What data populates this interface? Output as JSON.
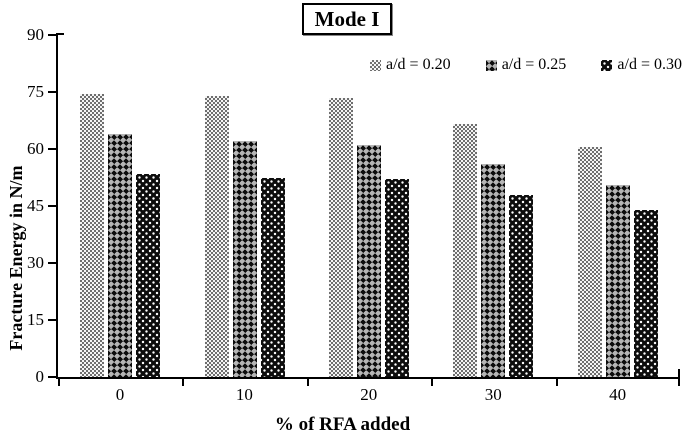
{
  "figure": {
    "title": "Mode I"
  },
  "chart_data": {
    "type": "bar",
    "title": "Mode I",
    "categories": [
      "0",
      "10",
      "20",
      "30",
      "40"
    ],
    "series": [
      {
        "name": "a/d = 0.20",
        "pattern": "light-gray-checker",
        "values": [
          74.5,
          74.0,
          73.5,
          66.5,
          60.5
        ]
      },
      {
        "name": "a/d = 0.25",
        "pattern": "dark-diamond-checker",
        "values": [
          64.0,
          62.0,
          61.0,
          56.0,
          50.5
        ]
      },
      {
        "name": "a/d = 0.30",
        "pattern": "black-white-dots",
        "values": [
          53.5,
          52.5,
          52.0,
          48.0,
          44.0
        ]
      }
    ],
    "xlabel": "% of RFA added",
    "ylabel": "Fracture Energy in N/m",
    "ylim": [
      0,
      90
    ],
    "yticks": [
      0,
      15,
      30,
      45,
      60,
      75,
      90
    ],
    "grid": false,
    "legend_position": "top-right-inside"
  },
  "colors": {
    "background": "#ffffff",
    "axis": "#000000",
    "series1_gray": "#6e6e6e",
    "series2_dark": "#0d0d0d",
    "series3_black": "#0d0d0d"
  }
}
